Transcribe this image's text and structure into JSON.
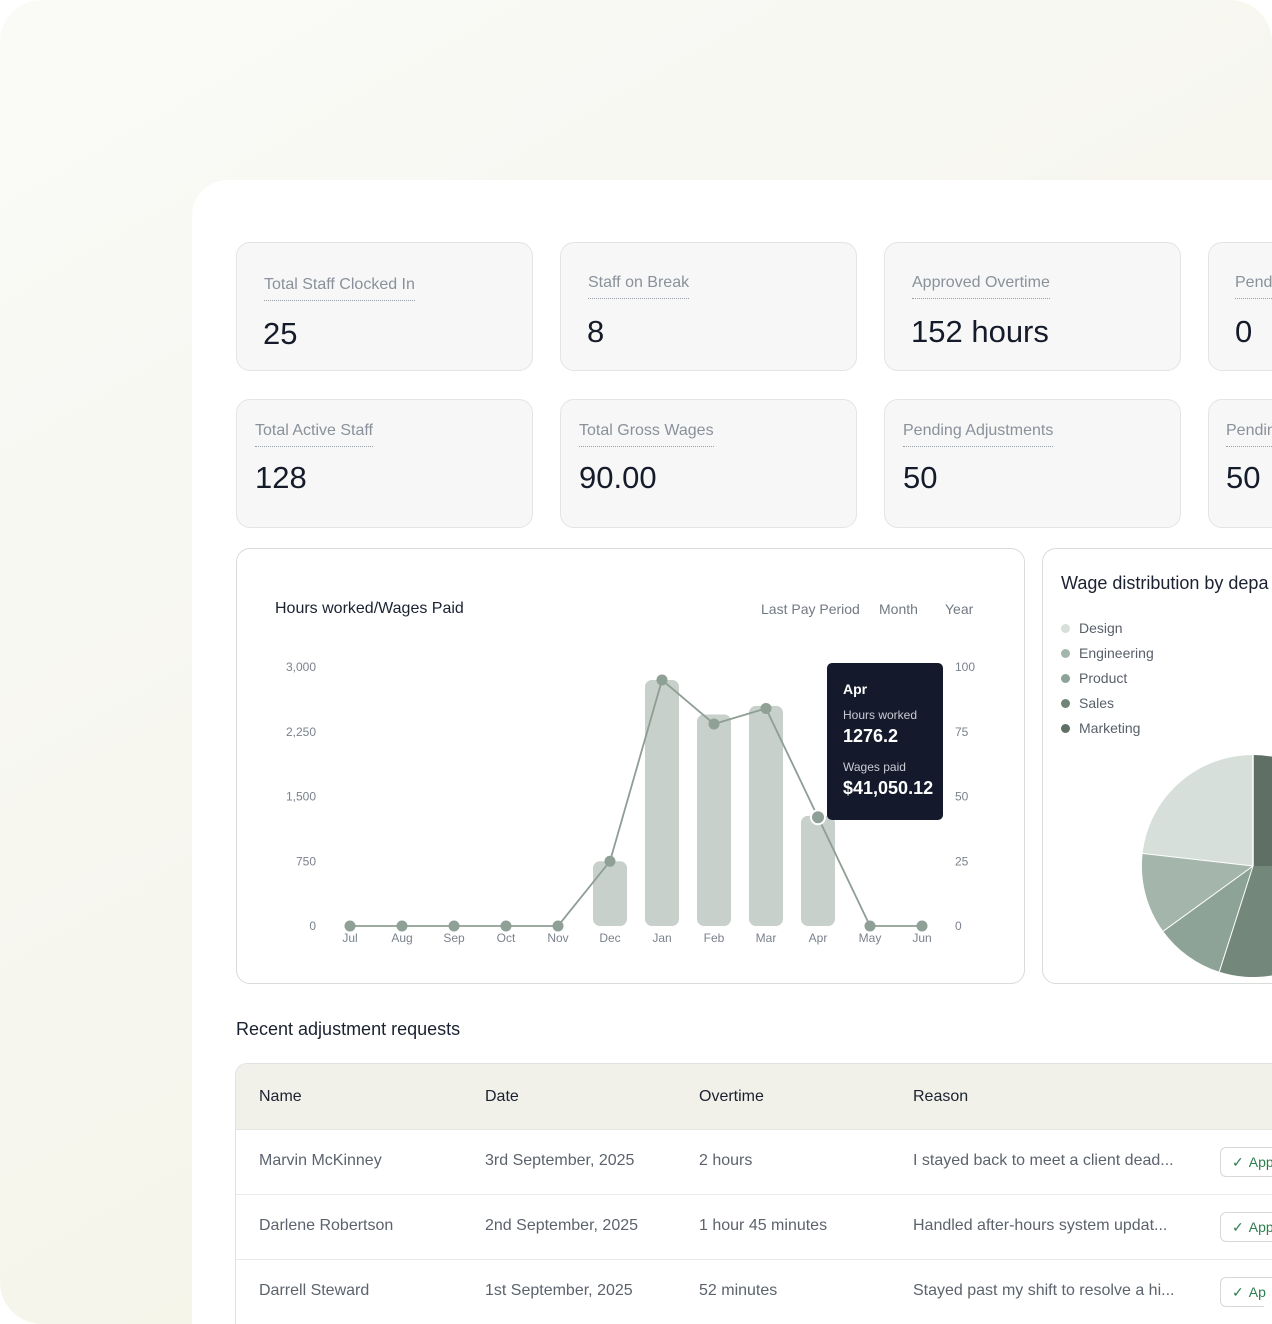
{
  "stats": [
    {
      "label": "Total Staff Clocked In",
      "value": "25"
    },
    {
      "label": "Staff on Break",
      "value": "8"
    },
    {
      "label": "Approved Overtime",
      "value": "152 hours"
    },
    {
      "label": "Pend",
      "value": "0"
    },
    {
      "label": "Total Active Staff",
      "value": "128"
    },
    {
      "label": "Total Gross Wages",
      "value": "90.00"
    },
    {
      "label": "Pending Adjustments",
      "value": "50"
    },
    {
      "label": "Pendin",
      "value": "50"
    }
  ],
  "chart_card": {
    "title": "Hours worked/Wages Paid",
    "periods": [
      "Last Pay Period",
      "Month",
      "Year"
    ]
  },
  "chart_data": {
    "type": "bar",
    "categories": [
      "Jul",
      "Aug",
      "Sep",
      "Oct",
      "Nov",
      "Dec",
      "Jan",
      "Feb",
      "Mar",
      "Apr",
      "May",
      "Jun"
    ],
    "series": [
      {
        "values": [
          0,
          0,
          0,
          0,
          0,
          750,
          2850,
          2450,
          2550,
          1276.2,
          0,
          0
        ]
      },
      {
        "values": [
          0,
          0,
          0,
          0,
          0,
          25,
          95,
          78,
          84,
          42,
          0,
          0
        ]
      }
    ],
    "y_left_ticks": [
      "3,000",
      "2,250",
      "1,500",
      "750",
      "0"
    ],
    "y_right_ticks": [
      "100",
      "75",
      "50",
      "25",
      "0"
    ],
    "ylim_left": [
      0,
      3000
    ],
    "ylim_right": [
      0,
      100
    ],
    "colors": {
      "bar": "#c7d0ca",
      "line": "#8e9e95",
      "point": "#8fa097"
    }
  },
  "tooltip": {
    "month": "Apr",
    "hours_label": "Hours worked",
    "hours_value": "1276.2",
    "wages_label": "Wages paid",
    "wages_value": "$41,050.12"
  },
  "pie_card": {
    "title": "Wage distribution by depa",
    "legend": [
      {
        "label": "Design",
        "color": "#d7dfda"
      },
      {
        "label": "Engineering",
        "color": "#a4b5ab"
      },
      {
        "label": "Product",
        "color": "#8ea397"
      },
      {
        "label": "Sales",
        "color": "#6f8578"
      },
      {
        "label": "Marketing",
        "color": "#5f6f66"
      }
    ]
  },
  "table": {
    "title": "Recent adjustment requests",
    "headers": [
      "Name",
      "Date",
      "Overtime",
      "Reason"
    ],
    "rows": [
      {
        "name": "Marvin McKinney",
        "date": "3rd September, 2025",
        "overtime": "2 hours",
        "reason": "I stayed back to meet a client dead...",
        "action": "App"
      },
      {
        "name": "Darlene Robertson",
        "date": "2nd September, 2025",
        "overtime": "1 hour 45 minutes",
        "reason": "Handled after-hours system updat...",
        "action": "App"
      },
      {
        "name": "Darrell Steward",
        "date": "1st September, 2025",
        "overtime": "52 minutes",
        "reason": "Stayed past my shift to resolve a hi...",
        "action": "Ap"
      }
    ]
  }
}
